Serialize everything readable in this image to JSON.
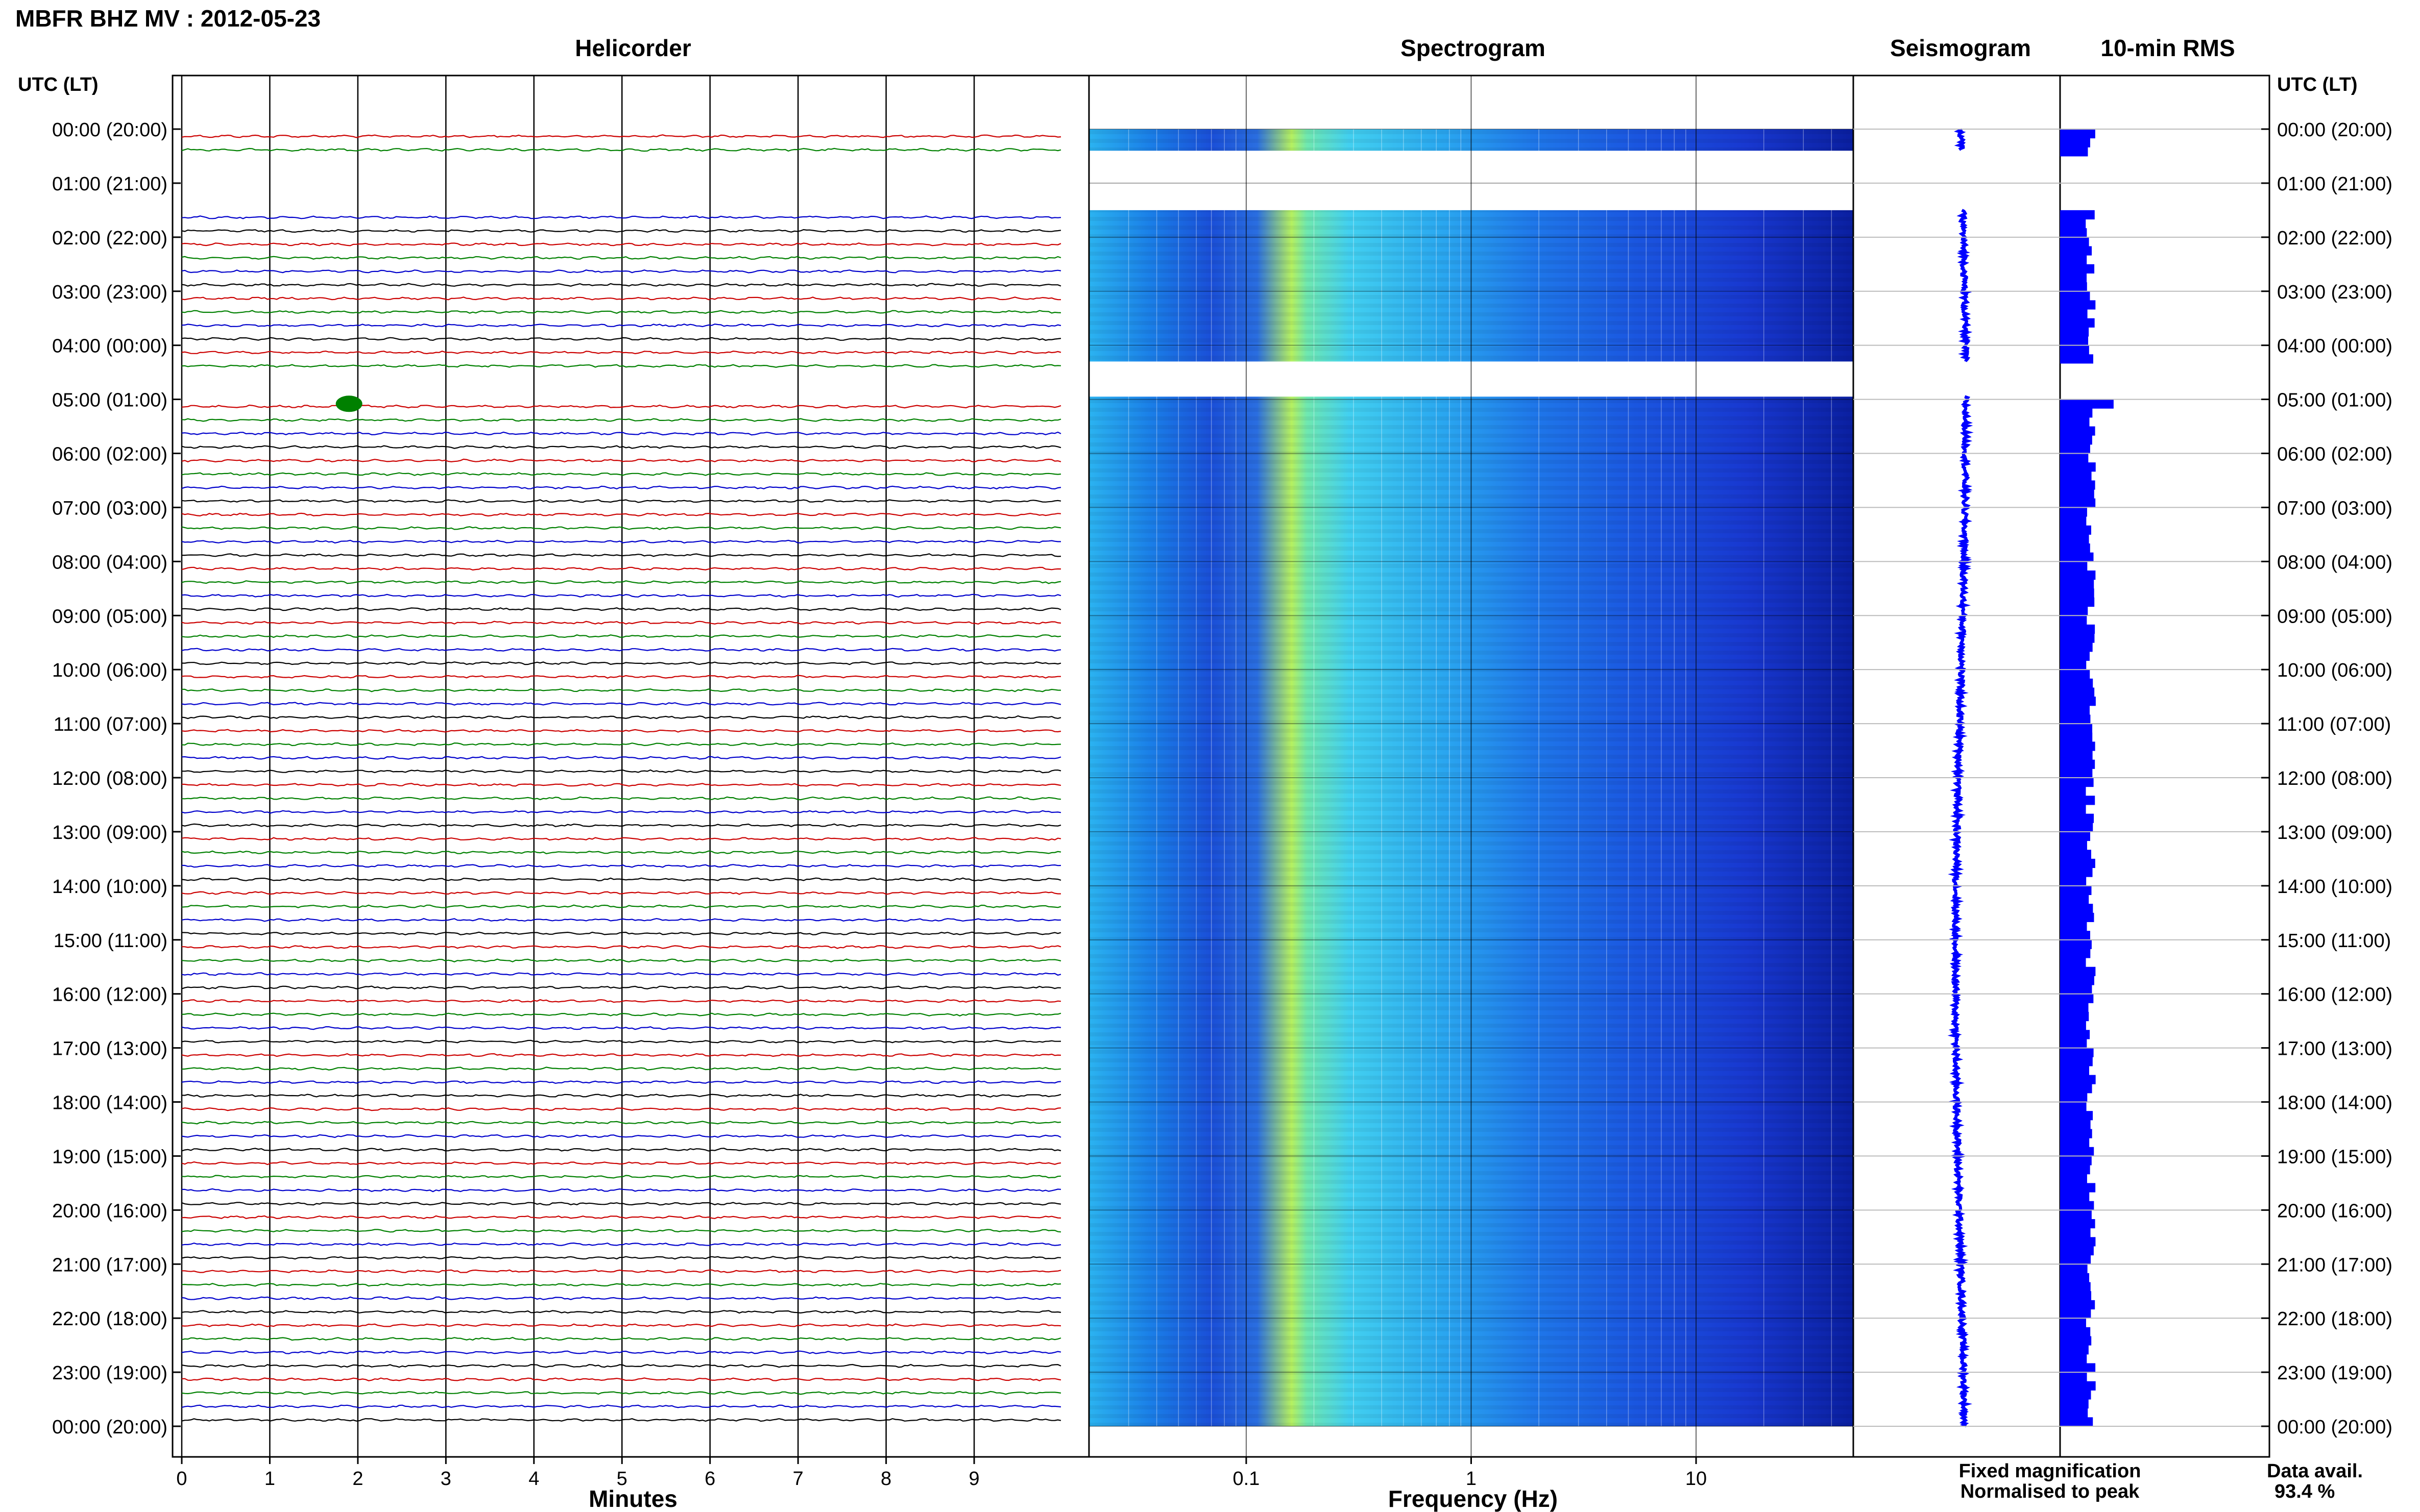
{
  "page": {
    "title": "MBFR BHZ MV : 2012-05-23"
  },
  "panels": {
    "helicorder": "Helicorder",
    "spectrogram": "Spectrogram",
    "seismogram": "Seismogram",
    "rms": "10-min RMS"
  },
  "axes": {
    "time_left_header": "UTC (LT)",
    "time_right_header": "UTC (LT)",
    "helicorder_xlabel": "Minutes",
    "spectrogram_xlabel": "Frequency (Hz)",
    "helicorder_ticks": [
      "0",
      "1",
      "2",
      "3",
      "4",
      "5",
      "6",
      "7",
      "8",
      "9"
    ],
    "spectrogram_ticks": [
      "0.1",
      "1",
      "10"
    ],
    "time_labels": [
      "00:00 (20:00)",
      "01:00 (21:00)",
      "02:00 (22:00)",
      "03:00 (23:00)",
      "04:00 (00:00)",
      "05:00 (01:00)",
      "06:00 (02:00)",
      "07:00 (03:00)",
      "08:00 (04:00)",
      "09:00 (05:00)",
      "10:00 (06:00)",
      "11:00 (07:00)",
      "12:00 (08:00)",
      "13:00 (09:00)",
      "14:00 (10:00)",
      "15:00 (11:00)",
      "16:00 (12:00)",
      "17:00 (13:00)",
      "18:00 (14:00)",
      "19:00 (15:00)",
      "20:00 (16:00)",
      "21:00 (17:00)",
      "22:00 (18:00)",
      "23:00 (19:00)",
      "00:00 (20:00)"
    ]
  },
  "legend": {
    "fixed": "Fixed magnification",
    "normalised": "Normalised to peak",
    "fixed_color": "#0000ff",
    "normalised_color": "#ff0000",
    "avail_label": "Data avail.",
    "avail_value": "93.4 %"
  },
  "chart_data": {
    "type": "heatmap",
    "title": "MBFR BHZ MV : 2012-05-23",
    "minutes_range": [
      0,
      10
    ],
    "frequency_range_hz": [
      0.02,
      50
    ],
    "frequency_scale": "log",
    "hours_range": [
      0,
      24
    ],
    "trace_colors": [
      "#cc0000",
      "#008000",
      "#0000cc",
      "#000000"
    ],
    "gaps_hours": [
      [
        0.4,
        1.5
      ],
      [
        4.3,
        4.95
      ]
    ],
    "data_availability_percent": 93.4,
    "events": [
      {
        "hour": 4.95,
        "minute": 1.9,
        "label": ""
      }
    ]
  }
}
